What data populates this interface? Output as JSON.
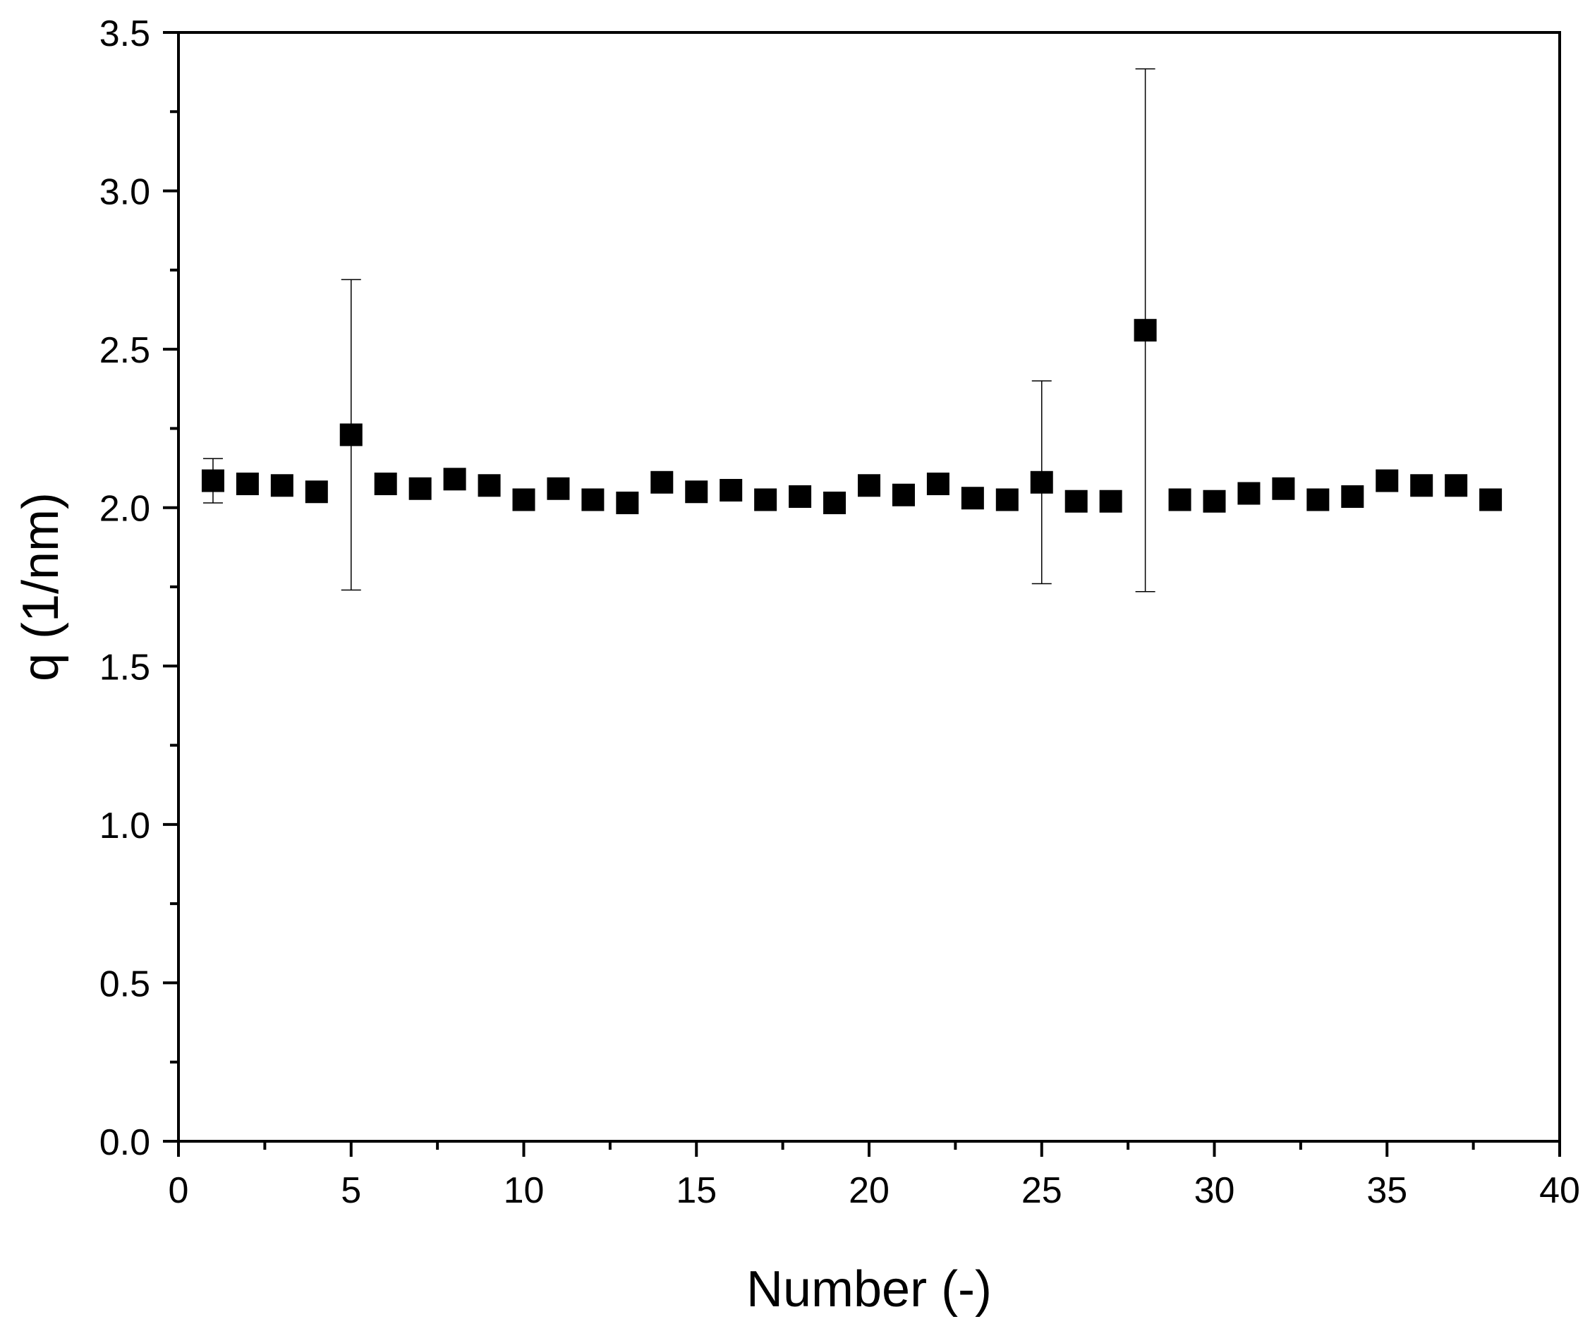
{
  "chart_data": {
    "type": "scatter",
    "xlabel": "Number (-)",
    "ylabel": "q (1/nm)",
    "xlim": [
      0,
      40
    ],
    "ylim": [
      0,
      3.5
    ],
    "x_ticks": [
      "0",
      "5",
      "10",
      "15",
      "20",
      "25",
      "30",
      "35",
      "40"
    ],
    "y_ticks": [
      "0.0",
      "0.5",
      "1.0",
      "1.5",
      "2.0",
      "2.5",
      "3.0",
      "3.5"
    ],
    "grid": false,
    "legend": "none",
    "marker": "filled-square",
    "color": "#000000",
    "series": [
      {
        "x": [
          1,
          2,
          3,
          4,
          5,
          6,
          7,
          8,
          9,
          10,
          11,
          12,
          13,
          14,
          15,
          16,
          17,
          18,
          19,
          20,
          21,
          22,
          23,
          24,
          25,
          26,
          27,
          28,
          29,
          30,
          31,
          32,
          33,
          34,
          35,
          36,
          37,
          38
        ],
        "y": [
          2.085,
          2.075,
          2.07,
          2.05,
          2.23,
          2.075,
          2.06,
          2.09,
          2.07,
          2.025,
          2.06,
          2.025,
          2.015,
          2.08,
          2.05,
          2.055,
          2.025,
          2.035,
          2.015,
          2.07,
          2.04,
          2.075,
          2.03,
          2.025,
          2.08,
          2.02,
          2.02,
          2.56,
          2.025,
          2.02,
          2.045,
          2.06,
          2.025,
          2.035,
          2.085,
          2.07,
          2.07,
          2.025
        ],
        "error_bars": [
          {
            "x": 1,
            "low": 2.015,
            "high": 2.155
          },
          {
            "x": 5,
            "low": 1.74,
            "high": 2.72
          },
          {
            "x": 25,
            "low": 1.76,
            "high": 2.4
          },
          {
            "x": 28,
            "low": 1.735,
            "high": 3.385
          }
        ]
      }
    ]
  }
}
